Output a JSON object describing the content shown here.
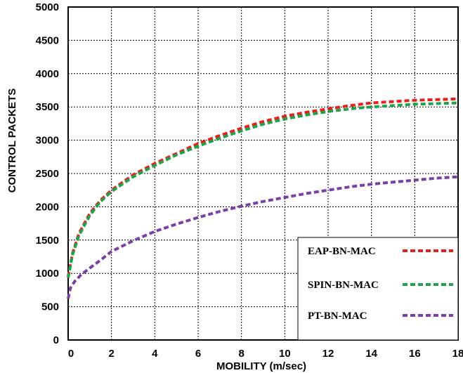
{
  "chart_data": {
    "type": "line",
    "xlabel": "MOBILITY (m/sec)",
    "ylabel": "CONTROL PACKETS",
    "xlim": [
      0,
      18
    ],
    "ylim": [
      0,
      5000
    ],
    "x_ticks": [
      0,
      2,
      4,
      6,
      8,
      10,
      12,
      14,
      16,
      18
    ],
    "y_ticks": [
      0,
      500,
      1000,
      1500,
      2000,
      2500,
      3000,
      3500,
      4000,
      4500,
      5000
    ],
    "grid": true,
    "legend_position": "bottom-right",
    "series": [
      {
        "name": "EAP-BN-MAC",
        "color": "#e8201c",
        "x": [
          0,
          0.2,
          0.5,
          1,
          1.5,
          2,
          3,
          4,
          5,
          6,
          7,
          8,
          9,
          10,
          11,
          12,
          13,
          14,
          15,
          16,
          17,
          18
        ],
        "y": [
          950,
          1300,
          1600,
          1900,
          2100,
          2250,
          2480,
          2650,
          2800,
          2950,
          3070,
          3180,
          3280,
          3360,
          3420,
          3470,
          3520,
          3560,
          3580,
          3600,
          3610,
          3620
        ]
      },
      {
        "name": "SPIN-BN-MAC",
        "color": "#1ea34a",
        "x": [
          0,
          0.2,
          0.5,
          1,
          1.5,
          2,
          3,
          4,
          5,
          6,
          7,
          8,
          9,
          10,
          11,
          12,
          13,
          14,
          15,
          16,
          17,
          18
        ],
        "y": [
          930,
          1280,
          1570,
          1870,
          2080,
          2230,
          2450,
          2620,
          2780,
          2910,
          3030,
          3140,
          3240,
          3320,
          3380,
          3430,
          3470,
          3500,
          3520,
          3540,
          3550,
          3560
        ]
      },
      {
        "name": "PT-BN-MAC",
        "color": "#7b3fa6",
        "x": [
          0,
          0.1,
          0.3,
          0.6,
          1,
          1.5,
          2,
          3,
          4,
          5,
          6,
          7,
          8,
          9,
          10,
          11,
          12,
          13,
          14,
          15,
          16,
          17,
          18
        ],
        "y": [
          620,
          780,
          880,
          980,
          1080,
          1200,
          1330,
          1490,
          1630,
          1740,
          1840,
          1930,
          2010,
          2080,
          2140,
          2200,
          2250,
          2300,
          2340,
          2370,
          2400,
          2430,
          2450
        ]
      }
    ]
  }
}
